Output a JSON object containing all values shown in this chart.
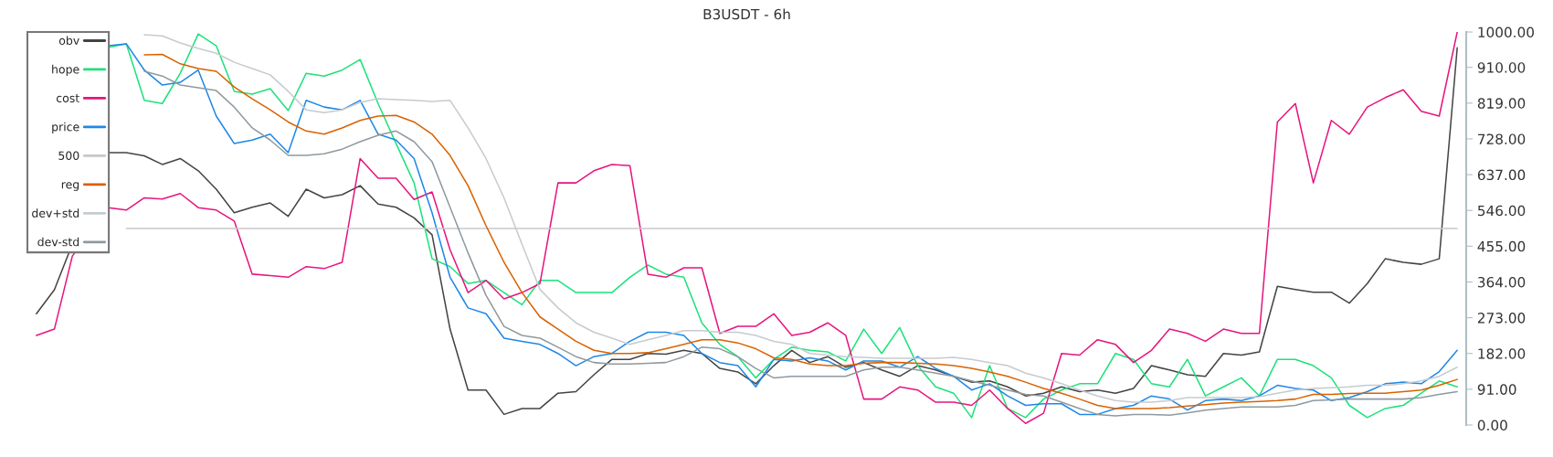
{
  "chart_data": {
    "type": "line",
    "title": "B3USDT - 6h",
    "categories": [
      null,
      null,
      null,
      null,
      null,
      null,
      null,
      null,
      null,
      null,
      null,
      null,
      null,
      null,
      null,
      null,
      null,
      null,
      null,
      null,
      null,
      null,
      null,
      null,
      null,
      null,
      null,
      null,
      null,
      null,
      null,
      null,
      null,
      null,
      null,
      null,
      null,
      null,
      null,
      null,
      null,
      null,
      null,
      null,
      null,
      null,
      null,
      null,
      null,
      null,
      null,
      null,
      null,
      null,
      null,
      null,
      null,
      null,
      null,
      null,
      null,
      null,
      null,
      null,
      null,
      null,
      null,
      null,
      null,
      null,
      null,
      null,
      null,
      null,
      null,
      null,
      null,
      null,
      null,
      null
    ],
    "series": [
      {
        "name": "obv",
        "color": "#444444",
        "values": [
          283,
          344,
          null,
          null,
          693,
          693,
          685,
          663,
          678,
          647,
          600,
          540,
          554,
          565,
          531,
          600,
          578,
          586,
          609,
          562,
          554,
          527,
          484,
          244,
          89,
          89,
          27,
          42,
          42,
          81,
          85,
          128,
          167,
          167,
          182,
          180,
          190,
          182,
          144,
          135,
          105,
          151,
          190,
          159,
          174,
          147,
          159,
          140,
          124,
          151,
          140,
          124,
          109,
          112,
          97,
          74,
          81,
          97,
          85,
          89,
          81,
          93,
          151,
          140,
          128,
          124,
          182,
          178,
          186,
          353,
          345,
          338,
          338,
          310,
          360,
          423,
          414,
          409,
          423,
          960
        ]
      },
      {
        "name": "hope",
        "color": "#1de27a",
        "values": [
          null,
          null,
          null,
          null,
          961,
          970,
          826,
          818,
          895,
          995,
          965,
          849,
          842,
          856,
          800,
          895,
          888,
          903,
          930,
          818,
          716,
          616,
          423,
          403,
          360,
          368,
          337,
          306,
          368,
          368,
          337,
          337,
          337,
          376,
          407,
          384,
          376,
          260,
          205,
          174,
          120,
          167,
          198,
          190,
          186,
          163,
          244,
          182,
          248,
          151,
          97,
          81,
          19,
          151,
          42,
          19,
          66,
          89,
          105,
          105,
          182,
          167,
          105,
          97,
          167,
          74,
          97,
          120,
          74,
          167,
          167,
          151,
          120,
          50,
          19,
          42,
          50,
          81,
          112,
          97
        ]
      },
      {
        "name": "cost",
        "color": "#e6157f",
        "values": [
          228,
          244,
          430,
          null,
          553,
          547,
          578,
          575,
          589,
          553,
          547,
          519,
          384,
          380,
          376,
          403,
          398,
          414,
          678,
          628,
          628,
          574,
          593,
          446,
          337,
          368,
          321,
          337,
          360,
          616,
          616,
          647,
          663,
          660,
          384,
          376,
          400,
          400,
          233,
          251,
          251,
          283,
          228,
          236,
          260,
          228,
          66,
          66,
          97,
          89,
          58,
          58,
          50,
          89,
          42,
          4,
          30,
          182,
          178,
          217,
          205,
          159,
          190,
          244,
          233,
          213,
          244,
          233,
          233,
          771,
          818,
          616,
          775,
          740,
          809,
          833,
          853,
          798,
          786,
          1000
        ]
      },
      {
        "name": "price",
        "color": "#1e88e5",
        "values": [
          null,
          null,
          null,
          null,
          965,
          970,
          903,
          865,
          872,
          903,
          786,
          716,
          725,
          740,
          693,
          826,
          809,
          802,
          826,
          740,
          725,
          678,
          540,
          376,
          298,
          283,
          221,
          213,
          205,
          182,
          151,
          174,
          182,
          213,
          236,
          236,
          228,
          182,
          159,
          151,
          97,
          167,
          163,
          171,
          163,
          140,
          163,
          163,
          147,
          174,
          144,
          124,
          89,
          105,
          74,
          50,
          54,
          54,
          27,
          27,
          42,
          50,
          74,
          66,
          38,
          62,
          66,
          62,
          74,
          101,
          93,
          89,
          62,
          70,
          85,
          105,
          109,
          105,
          136,
          190
        ]
      },
      {
        "name": "500",
        "color": "#c8c8c8",
        "values": [
          null,
          null,
          null,
          null,
          null,
          500,
          500,
          500,
          500,
          500,
          500,
          500,
          500,
          500,
          500,
          500,
          500,
          500,
          500,
          500,
          500,
          500,
          500,
          500,
          500,
          500,
          500,
          500,
          500,
          500,
          500,
          500,
          500,
          500,
          500,
          500,
          500,
          500,
          500,
          500,
          500,
          500,
          500,
          500,
          500,
          500,
          500,
          500,
          500,
          500,
          500,
          500,
          500,
          500,
          500,
          500,
          500,
          500,
          500,
          500,
          500,
          500,
          500,
          500,
          500,
          500,
          500,
          500,
          500,
          500,
          500,
          500,
          500,
          500,
          500,
          500,
          500,
          500,
          500,
          500
        ]
      },
      {
        "name": "reg",
        "color": "#d96200",
        "values": [
          null,
          null,
          null,
          null,
          null,
          null,
          942,
          943,
          919,
          907,
          900,
          860,
          830,
          802,
          771,
          748,
          740,
          756,
          775,
          786,
          788,
          771,
          740,
          686,
          609,
          507,
          414,
          337,
          275,
          244,
          213,
          190,
          182,
          182,
          184,
          194,
          205,
          217,
          217,
          209,
          194,
          171,
          167,
          155,
          151,
          151,
          157,
          159,
          159,
          157,
          155,
          151,
          144,
          135,
          124,
          109,
          93,
          81,
          66,
          50,
          42,
          42,
          42,
          44,
          48,
          52,
          56,
          58,
          60,
          62,
          66,
          78,
          78,
          80,
          81,
          81,
          85,
          89,
          101,
          116
        ]
      },
      {
        "name": "dev+std",
        "color": "#c5cbd0",
        "values": [
          null,
          null,
          null,
          null,
          null,
          null,
          993,
          990,
          972,
          958,
          946,
          923,
          907,
          891,
          849,
          802,
          795,
          802,
          821,
          830,
          828,
          826,
          823,
          826,
          756,
          678,
          578,
          460,
          345,
          298,
          260,
          236,
          221,
          205,
          217,
          228,
          240,
          240,
          236,
          236,
          228,
          213,
          205,
          182,
          178,
          174,
          172,
          170,
          170,
          170,
          170,
          172,
          167,
          159,
          151,
          132,
          120,
          105,
          89,
          74,
          62,
          58,
          58,
          62,
          70,
          70,
          70,
          70,
          72,
          81,
          89,
          93,
          95,
          97,
          101,
          101,
          105,
          112,
          124,
          147
        ]
      },
      {
        "name": "dev-std",
        "color": "#8f999f",
        "values": [
          null,
          null,
          null,
          null,
          null,
          null,
          900,
          888,
          865,
          858,
          851,
          809,
          756,
          725,
          686,
          686,
          690,
          702,
          721,
          737,
          748,
          721,
          670,
          554,
          438,
          330,
          251,
          228,
          221,
          198,
          174,
          159,
          155,
          155,
          157,
          159,
          174,
          198,
          194,
          174,
          144,
          120,
          124,
          124,
          124,
          124,
          140,
          147,
          147,
          140,
          132,
          124,
          112,
          101,
          89,
          78,
          74,
          58,
          42,
          27,
          23,
          27,
          27,
          25,
          31,
          38,
          42,
          46,
          46,
          46,
          50,
          62,
          64,
          66,
          66,
          66,
          66,
          70,
          78,
          85
        ]
      }
    ],
    "ylim": [
      0,
      1000
    ],
    "yticks": [
      {
        "value": 0,
        "label": "0.00"
      },
      {
        "value": 91,
        "label": "91.00"
      },
      {
        "value": 182,
        "label": "182.00"
      },
      {
        "value": 273,
        "label": "273.00"
      },
      {
        "value": 364,
        "label": "364.00"
      },
      {
        "value": 455,
        "label": "455.00"
      },
      {
        "value": 546,
        "label": "546.00"
      },
      {
        "value": 637,
        "label": "637.00"
      },
      {
        "value": 728,
        "label": "728.00"
      },
      {
        "value": 819,
        "label": "819.00"
      },
      {
        "value": 910,
        "label": "910.00"
      },
      {
        "value": 1000,
        "label": "1000.00"
      }
    ],
    "tick_labels": "y",
    "legend": "top left",
    "grid": false,
    "marker": "none",
    "line_style": "solid"
  }
}
